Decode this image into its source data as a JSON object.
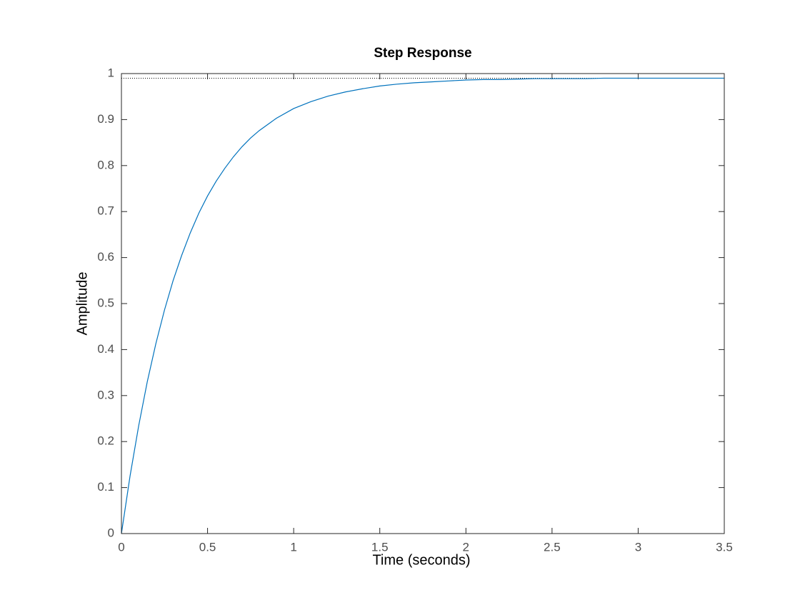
{
  "chart_data": {
    "type": "line",
    "title": "Step Response",
    "x_label": "Time (seconds)",
    "y_label": "Amplitude",
    "x": [
      0,
      0.05,
      0.1,
      0.15,
      0.2,
      0.25,
      0.3,
      0.35,
      0.4,
      0.45,
      0.5,
      0.55,
      0.6,
      0.65,
      0.7,
      0.75,
      0.8,
      0.9,
      1,
      1.1,
      1.2,
      1.3,
      1.4,
      1.5,
      1.6,
      1.7,
      1.8,
      1.9,
      2,
      2.1,
      2.2,
      2.3,
      2.4,
      2.5,
      2.6,
      2.7,
      2.8,
      2.9,
      3,
      3.1,
      3.2,
      3.3,
      3.4,
      3.5
    ],
    "series": [
      {
        "name": "Step",
        "color": "#0072bd",
        "values": [
          0,
          0.125,
          0.234,
          0.33,
          0.413,
          0.486,
          0.55,
          0.605,
          0.654,
          0.697,
          0.734,
          0.766,
          0.794,
          0.819,
          0.841,
          0.86,
          0.876,
          0.903,
          0.924,
          0.939,
          0.951,
          0.96,
          0.967,
          0.973,
          0.977,
          0.98,
          0.982,
          0.984,
          0.986,
          0.987,
          0.987,
          0.988,
          0.989,
          0.989,
          0.989,
          0.989,
          0.99,
          0.99,
          0.99,
          0.99,
          0.99,
          0.99,
          0.99,
          0.99
        ]
      }
    ],
    "steady_state": 0.99,
    "xlim": [
      0,
      3.5
    ],
    "xticks": [
      0,
      0.5,
      1,
      1.5,
      2,
      2.5,
      3,
      3.5
    ],
    "ylim": [
      0,
      1
    ],
    "yticks": [
      0,
      0.1,
      0.2,
      0.3,
      0.4,
      0.5,
      0.6,
      0.7,
      0.8,
      0.9,
      1
    ],
    "grid": false
  }
}
